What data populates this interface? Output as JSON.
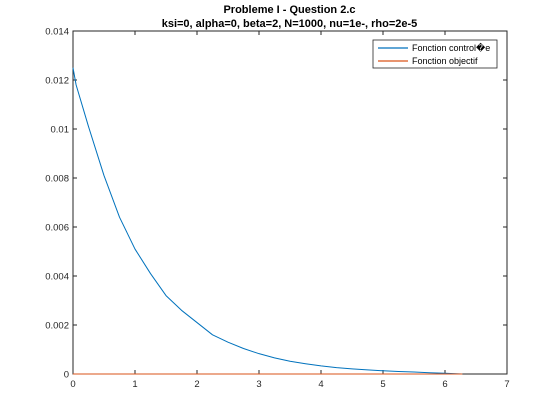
{
  "chart_data": {
    "type": "line",
    "title": "Probleme I - Question 2.c",
    "subtitle": "ksi=0, alpha=0, beta=2, N=1000, nu=1e-, rho=2e-5",
    "xlabel": "",
    "ylabel": "",
    "xlim": [
      0,
      7
    ],
    "ylim": [
      0,
      0.014
    ],
    "x_ticks": [
      "0",
      "1",
      "2",
      "3",
      "4",
      "5",
      "6",
      "7"
    ],
    "y_ticks": [
      "0",
      "0.002",
      "0.004",
      "0.006",
      "0.008",
      "0.01",
      "0.012",
      "0.014"
    ],
    "grid": false,
    "legend_position": "top-right",
    "series": [
      {
        "name": "Fonction control�e",
        "color": "#0072BD",
        "x": [
          0,
          0.05,
          0.25,
          0.5,
          0.75,
          1,
          1.25,
          1.5,
          1.75,
          2,
          2.25,
          2.5,
          2.75,
          3,
          3.25,
          3.5,
          3.75,
          4,
          4.25,
          4.5,
          4.75,
          5,
          5.25,
          5.5,
          5.75,
          6,
          6.28
        ],
        "y": [
          0.0125,
          0.0118,
          0.0101,
          0.0081,
          0.0064,
          0.0051,
          0.0041,
          0.0032,
          0.0026,
          0.0021,
          0.0016,
          0.0013,
          0.00104,
          0.00083,
          0.00066,
          0.00052,
          0.00042,
          0.00033,
          0.00026,
          0.00021,
          0.00017,
          0.00013,
          0.0001,
          8e-05,
          5e-05,
          3e-05,
          0
        ]
      },
      {
        "name": "Fonction objectif",
        "color": "#D95319",
        "x": [
          0,
          6.28
        ],
        "y": [
          0,
          0
        ]
      }
    ]
  }
}
